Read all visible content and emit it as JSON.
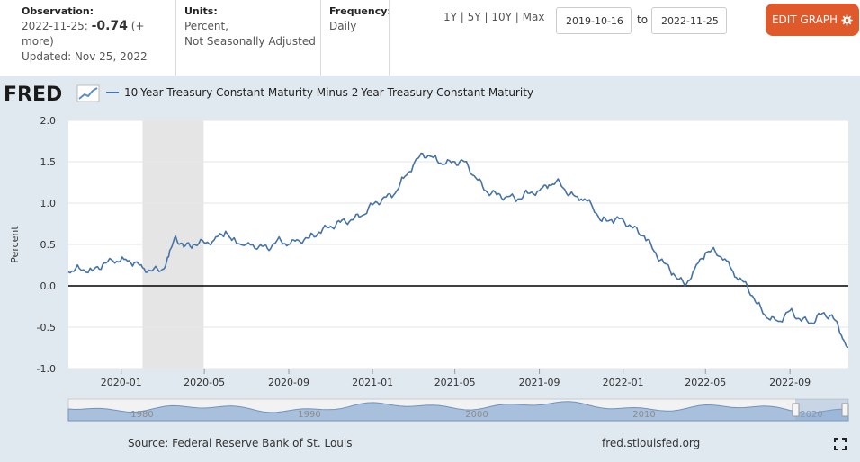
{
  "header": {
    "observation_label": "Observation:",
    "observation_date": "2022-11-25:",
    "observation_value": "-0.74",
    "observation_more": "(+ more)",
    "updated": "Updated: Nov 25, 2022",
    "units_label": "Units:",
    "units_line1": "Percent,",
    "units_line2": "Not Seasonally Adjusted",
    "frequency_label": "Frequency:",
    "frequency_value": "Daily",
    "range_links": [
      "1Y",
      "5Y",
      "10Y",
      "Max"
    ],
    "range_sep": "|",
    "start_date": "2019-10-16",
    "to_label": "to",
    "end_date": "2022-11-25",
    "edit_button": "EDIT GRAPH"
  },
  "logo": {
    "text": "FRED"
  },
  "footer": {
    "source": "Source: Federal Reserve Bank of St. Louis",
    "site": "fred.stlouisfed.org"
  },
  "icons": {
    "edit": "gear-icon",
    "fullscreen": "fullscreen-icon",
    "logo": "fred-chart-icon"
  },
  "colors": {
    "line": "#4572a7",
    "recession": "#e5e5e5",
    "accent": "#e0592a"
  },
  "chart_data": {
    "type": "line",
    "title": "",
    "series": [
      {
        "name": "10-Year Treasury Constant Maturity Minus 2-Year Treasury Constant Maturity",
        "x": [
          "2019-10-16",
          "2019-11-01",
          "2019-11-20",
          "2019-12-05",
          "2019-12-20",
          "2020-01-05",
          "2020-01-20",
          "2020-02-01",
          "2020-02-15",
          "2020-03-01",
          "2020-03-10",
          "2020-03-20",
          "2020-04-01",
          "2020-04-15",
          "2020-05-01",
          "2020-05-15",
          "2020-06-01",
          "2020-06-10",
          "2020-07-01",
          "2020-07-20",
          "2020-08-01",
          "2020-08-15",
          "2020-09-01",
          "2020-09-15",
          "2020-10-01",
          "2020-10-15",
          "2020-11-01",
          "2020-11-15",
          "2020-12-01",
          "2020-12-15",
          "2021-01-01",
          "2021-01-15",
          "2021-02-01",
          "2021-02-15",
          "2021-03-01",
          "2021-03-15",
          "2021-03-31",
          "2021-04-15",
          "2021-05-01",
          "2021-05-15",
          "2021-06-01",
          "2021-06-15",
          "2021-07-01",
          "2021-07-15",
          "2021-08-01",
          "2021-08-15",
          "2021-09-01",
          "2021-09-15",
          "2021-10-01",
          "2021-10-15",
          "2021-11-01",
          "2021-11-15",
          "2021-12-01",
          "2021-12-15",
          "2022-01-01",
          "2022-01-15",
          "2022-02-01",
          "2022-02-15",
          "2022-03-01",
          "2022-03-15",
          "2022-04-01",
          "2022-04-15",
          "2022-05-01",
          "2022-05-15",
          "2022-06-01",
          "2022-06-15",
          "2022-07-01",
          "2022-07-15",
          "2022-08-01",
          "2022-08-15",
          "2022-09-01",
          "2022-09-15",
          "2022-10-01",
          "2022-10-15",
          "2022-11-01",
          "2022-11-15",
          "2022-11-25"
        ],
        "y": [
          0.17,
          0.21,
          0.18,
          0.26,
          0.3,
          0.32,
          0.28,
          0.22,
          0.18,
          0.2,
          0.35,
          0.6,
          0.47,
          0.5,
          0.52,
          0.55,
          0.66,
          0.55,
          0.5,
          0.48,
          0.45,
          0.55,
          0.5,
          0.55,
          0.58,
          0.65,
          0.72,
          0.77,
          0.8,
          0.84,
          0.98,
          1.05,
          1.1,
          1.3,
          1.45,
          1.6,
          1.55,
          1.47,
          1.5,
          1.5,
          1.3,
          1.15,
          1.1,
          1.08,
          1.05,
          1.12,
          1.15,
          1.22,
          1.25,
          1.1,
          1.05,
          1.0,
          0.78,
          0.8,
          0.8,
          0.7,
          0.6,
          0.42,
          0.28,
          0.15,
          0.0,
          0.2,
          0.4,
          0.42,
          0.3,
          0.1,
          0.0,
          -0.22,
          -0.4,
          -0.43,
          -0.3,
          -0.4,
          -0.45,
          -0.35,
          -0.35,
          -0.6,
          -0.74
        ]
      }
    ],
    "recession": {
      "start": "2020-02-01",
      "end": "2020-04-30"
    },
    "xlabel": "",
    "ylabel": "Percent",
    "ylim": [
      -1.0,
      2.0
    ],
    "yticks": [
      "2.0",
      "1.5",
      "1.0",
      "0.5",
      "0.0",
      "-0.5",
      "-1.0"
    ],
    "xticks": [
      "2020-01",
      "2020-05",
      "2020-09",
      "2021-01",
      "2021-05",
      "2021-09",
      "2022-01",
      "2022-05",
      "2022-09"
    ],
    "zero_line": true,
    "grid": "horizontal",
    "navigator_labels": [
      "1980",
      "1990",
      "2000",
      "2010",
      "2020"
    ]
  }
}
